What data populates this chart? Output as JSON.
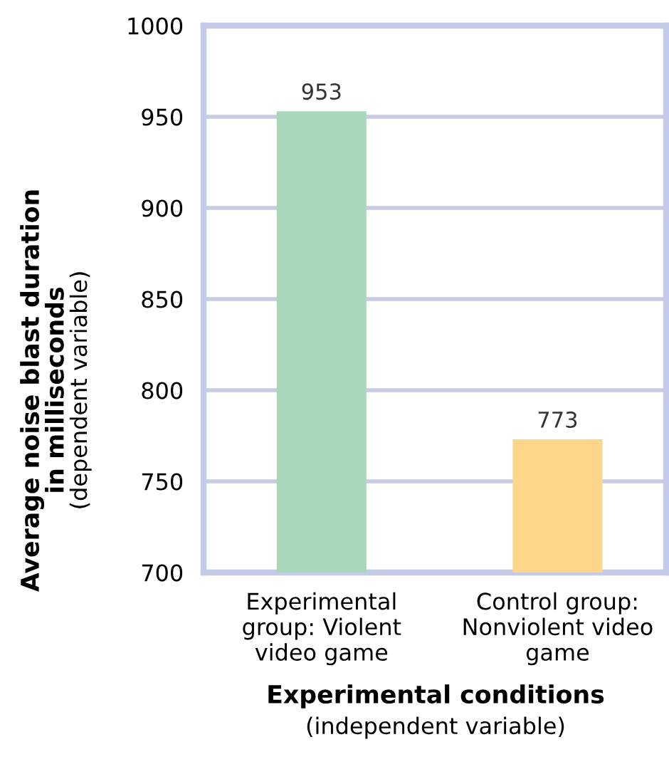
{
  "chart_data": {
    "type": "bar",
    "xlabel": "Experimental conditions\n(independent variable)",
    "ylabel": "Average noise blast duration\nin milliseconds\n(dependent variable)",
    "categories": [
      "Experimental\ngroup: Violent\nvideo game",
      "Control group:\nNonviolent video\ngame"
    ],
    "values": [
      953,
      773
    ],
    "colors": [
      "#a8d8b9",
      "#fdd68a"
    ],
    "ylim": [
      700,
      1000
    ],
    "yticks": [
      700,
      750,
      800,
      850,
      900,
      950,
      1000
    ],
    "grid": "y",
    "data_labels": true
  }
}
